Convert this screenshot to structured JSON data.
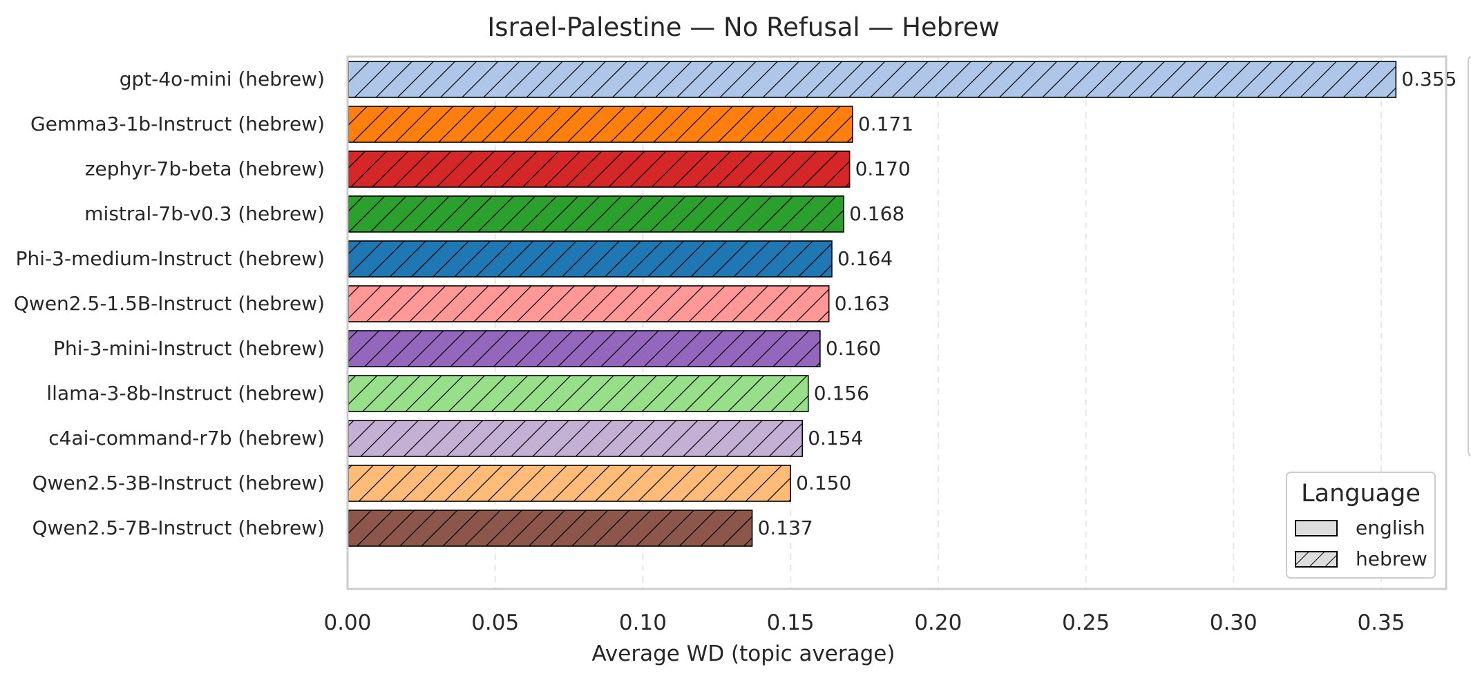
{
  "chart_data": {
    "type": "bar",
    "orientation": "horizontal",
    "title": "Israel-Palestine — No Refusal — Hebrew",
    "xlabel": "Average WD (topic average)",
    "ylabel": "",
    "xlim": [
      0,
      0.372
    ],
    "x_ticks": [
      "0.00",
      "0.05",
      "0.10",
      "0.15",
      "0.20",
      "0.25",
      "0.30",
      "0.35"
    ],
    "grid": "vertical dashed",
    "categories": [
      "gpt-4o-mini (hebrew)",
      "Gemma3-1b-Instruct (hebrew)",
      "zephyr-7b-beta (hebrew)",
      "mistral-7b-v0.3 (hebrew)",
      "Phi-3-medium-Instruct (hebrew)",
      "Qwen2.5-1.5B-Instruct (hebrew)",
      "Phi-3-mini-Instruct (hebrew)",
      "llama-3-8b-Instruct (hebrew)",
      "c4ai-command-r7b (hebrew)",
      "Qwen2.5-3B-Instruct (hebrew)",
      "Qwen2.5-7B-Instruct (hebrew)"
    ],
    "values": [
      0.355,
      0.171,
      0.17,
      0.168,
      0.164,
      0.163,
      0.16,
      0.156,
      0.154,
      0.15,
      0.137
    ],
    "value_labels": [
      "0.355",
      "0.171",
      "0.170",
      "0.168",
      "0.164",
      "0.163",
      "0.160",
      "0.156",
      "0.154",
      "0.150",
      "0.137"
    ],
    "colors": [
      "#aec7e8",
      "#ff7f0e",
      "#d62728",
      "#2ca02c",
      "#1f77b4",
      "#ff9896",
      "#9467bd",
      "#98df8a",
      "#c5b0d5",
      "#ffbb78",
      "#8c564b"
    ],
    "hatch": "diagonal",
    "legend": {
      "title": "Language",
      "placement": "bottom-right",
      "entries": [
        {
          "label": "english",
          "hatch": "none"
        },
        {
          "label": "hebrew",
          "hatch": "diagonal"
        }
      ]
    }
  }
}
